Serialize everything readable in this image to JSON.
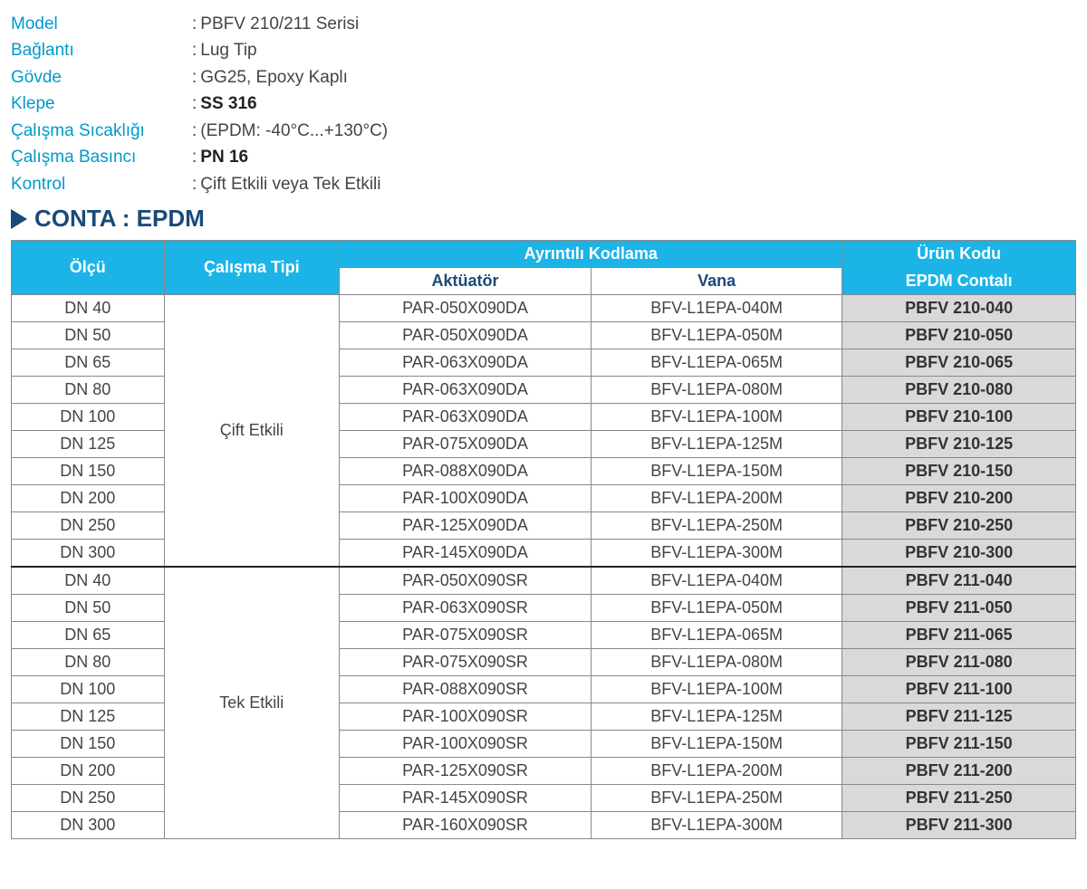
{
  "specs": [
    {
      "label": "Model",
      "value": "PBFV 210/211 Serisi",
      "bold": false
    },
    {
      "label": "Bağlantı",
      "value": "Lug Tip",
      "bold": false
    },
    {
      "label": "Gövde",
      "value": "GG25, Epoxy Kaplı",
      "bold": false
    },
    {
      "label": "Klepe",
      "value": "SS 316",
      "bold": true
    },
    {
      "label": "Çalışma Sıcaklığı",
      "value": "(EPDM: -40°C...+130°C)",
      "bold": false
    },
    {
      "label": "Çalışma Basıncı",
      "value": "PN 16",
      "bold": true
    },
    {
      "label": "Kontrol",
      "value": "Çift Etkili veya Tek Etkili",
      "bold": false
    }
  ],
  "section_title": "CONTA : EPDM",
  "table": {
    "headers": {
      "size": "Ölçü",
      "type": "Çalışma Tipi",
      "detail": "Ayrıntılı Kodlama",
      "actuator": "Aktüatör",
      "valve": "Vana",
      "product": "Ürün Kodu",
      "product_sub": "EPDM Contalı"
    },
    "groups": [
      {
        "type_label": "Çift Etkili",
        "rows": [
          {
            "size": "DN 40",
            "act": "PAR-050X090DA",
            "vana": "BFV-L1EPA-040M",
            "code": "PBFV 210-040"
          },
          {
            "size": "DN 50",
            "act": "PAR-050X090DA",
            "vana": "BFV-L1EPA-050M",
            "code": "PBFV 210-050"
          },
          {
            "size": "DN 65",
            "act": "PAR-063X090DA",
            "vana": "BFV-L1EPA-065M",
            "code": "PBFV 210-065"
          },
          {
            "size": "DN 80",
            "act": "PAR-063X090DA",
            "vana": "BFV-L1EPA-080M",
            "code": "PBFV 210-080"
          },
          {
            "size": "DN 100",
            "act": "PAR-063X090DA",
            "vana": "BFV-L1EPA-100M",
            "code": "PBFV 210-100"
          },
          {
            "size": "DN 125",
            "act": "PAR-075X090DA",
            "vana": "BFV-L1EPA-125M",
            "code": "PBFV 210-125"
          },
          {
            "size": "DN 150",
            "act": "PAR-088X090DA",
            "vana": "BFV-L1EPA-150M",
            "code": "PBFV 210-150"
          },
          {
            "size": "DN 200",
            "act": "PAR-100X090DA",
            "vana": "BFV-L1EPA-200M",
            "code": "PBFV 210-200"
          },
          {
            "size": "DN 250",
            "act": "PAR-125X090DA",
            "vana": "BFV-L1EPA-250M",
            "code": "PBFV 210-250"
          },
          {
            "size": "DN 300",
            "act": "PAR-145X090DA",
            "vana": "BFV-L1EPA-300M",
            "code": "PBFV 210-300"
          }
        ]
      },
      {
        "type_label": "Tek Etkili",
        "rows": [
          {
            "size": "DN 40",
            "act": "PAR-050X090SR",
            "vana": "BFV-L1EPA-040M",
            "code": "PBFV 211-040"
          },
          {
            "size": "DN 50",
            "act": "PAR-063X090SR",
            "vana": "BFV-L1EPA-050M",
            "code": "PBFV 211-050"
          },
          {
            "size": "DN 65",
            "act": "PAR-075X090SR",
            "vana": "BFV-L1EPA-065M",
            "code": "PBFV 211-065"
          },
          {
            "size": "DN 80",
            "act": "PAR-075X090SR",
            "vana": "BFV-L1EPA-080M",
            "code": "PBFV 211-080"
          },
          {
            "size": "DN 100",
            "act": "PAR-088X090SR",
            "vana": "BFV-L1EPA-100M",
            "code": "PBFV 211-100"
          },
          {
            "size": "DN 125",
            "act": "PAR-100X090SR",
            "vana": "BFV-L1EPA-125M",
            "code": "PBFV 211-125"
          },
          {
            "size": "DN 150",
            "act": "PAR-100X090SR",
            "vana": "BFV-L1EPA-150M",
            "code": "PBFV 211-150"
          },
          {
            "size": "DN 200",
            "act": "PAR-125X090SR",
            "vana": "BFV-L1EPA-200M",
            "code": "PBFV 211-200"
          },
          {
            "size": "DN 250",
            "act": "PAR-145X090SR",
            "vana": "BFV-L1EPA-250M",
            "code": "PBFV 211-250"
          },
          {
            "size": "DN 300",
            "act": "PAR-160X090SR",
            "vana": "BFV-L1EPA-300M",
            "code": "PBFV 211-300"
          }
        ]
      }
    ]
  }
}
